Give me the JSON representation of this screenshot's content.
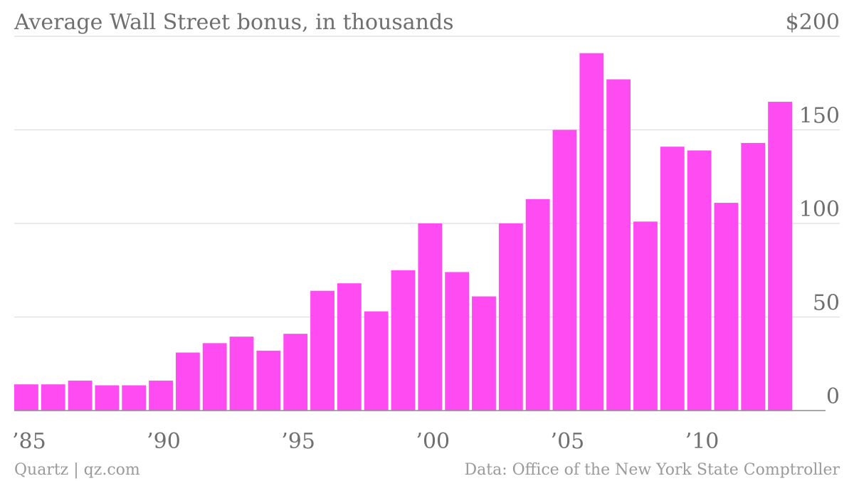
{
  "chart_data": {
    "type": "bar",
    "title": "Average Wall Street bonus, in thousands",
    "xlabel": "",
    "ylabel": "",
    "y_axis_side": "right",
    "grid": true,
    "ylim": [
      0,
      200
    ],
    "yticks": [
      0,
      50,
      100,
      150,
      200
    ],
    "ytick_labels": [
      "0",
      "50",
      "100",
      "150",
      "$200"
    ],
    "x": [
      1985,
      1986,
      1987,
      1988,
      1989,
      1990,
      1991,
      1992,
      1993,
      1994,
      1995,
      1996,
      1997,
      1998,
      1999,
      2000,
      2001,
      2002,
      2003,
      2004,
      2005,
      2006,
      2007,
      2008,
      2009,
      2010,
      2011,
      2012,
      2013
    ],
    "values": [
      14,
      14,
      16,
      13.5,
      13.5,
      16,
      31,
      36,
      39.5,
      32,
      41,
      64,
      68,
      53,
      75,
      100,
      74,
      61,
      100,
      113,
      150,
      191,
      177,
      101,
      141,
      139,
      111,
      143,
      165
    ],
    "xticks": [
      1985,
      1990,
      1995,
      2000,
      2005,
      2010
    ],
    "xtick_labels": [
      "’85",
      "’90",
      "’95",
      "’00",
      "’05",
      "’10"
    ],
    "bar_color": "#ff4cf2"
  },
  "footer": {
    "credit": "Quartz | qz.com",
    "source": "Data: Office of the New York State Comptroller"
  }
}
